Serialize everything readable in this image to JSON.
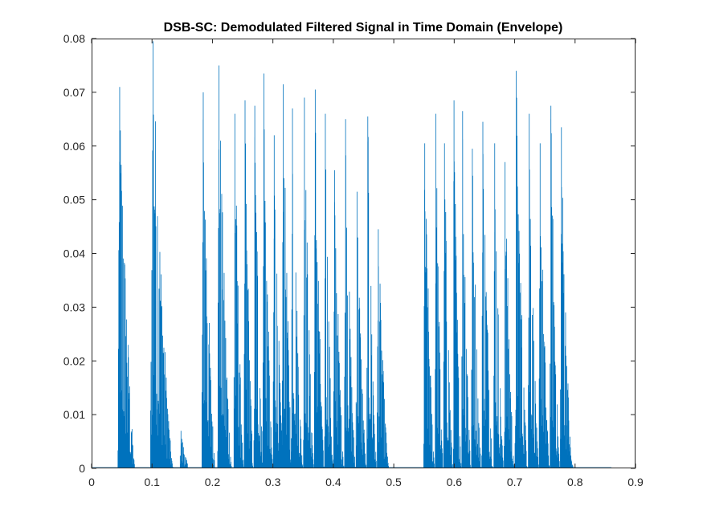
{
  "chart_data": {
    "type": "area",
    "title": "DSB-SC: Demodulated Filtered Signal in Time Domain (Envelope)",
    "xlabel": "",
    "ylabel": "",
    "xlim": [
      0,
      0.9
    ],
    "ylim": [
      0,
      0.08
    ],
    "grid": false,
    "x_ticks": [
      "0",
      "0.1",
      "0.2",
      "0.3",
      "0.4",
      "0.5",
      "0.6",
      "0.7",
      "0.8",
      "0.9"
    ],
    "y_ticks": [
      "0",
      "0.01",
      "0.02",
      "0.03",
      "0.04",
      "0.05",
      "0.06",
      "0.07",
      "0.08"
    ],
    "series_color": "#0072BD",
    "signal_end": 0.86,
    "bursts": [
      {
        "start": 0.043,
        "end": 0.072,
        "peak": 0.071
      },
      {
        "start": 0.097,
        "end": 0.135,
        "peak": 0.0795
      },
      {
        "start": 0.146,
        "end": 0.162,
        "peak": 0.007
      },
      {
        "start": 0.182,
        "end": 0.205,
        "peak": 0.07
      },
      {
        "start": 0.208,
        "end": 0.232,
        "peak": 0.075
      },
      {
        "start": 0.235,
        "end": 0.252,
        "peak": 0.066
      },
      {
        "start": 0.252,
        "end": 0.268,
        "peak": 0.0685
      },
      {
        "start": 0.268,
        "end": 0.285,
        "peak": 0.0675
      },
      {
        "start": 0.283,
        "end": 0.3,
        "peak": 0.0735
      },
      {
        "start": 0.3,
        "end": 0.318,
        "peak": 0.062
      },
      {
        "start": 0.315,
        "end": 0.333,
        "peak": 0.0715
      },
      {
        "start": 0.33,
        "end": 0.35,
        "peak": 0.067
      },
      {
        "start": 0.35,
        "end": 0.368,
        "peak": 0.069
      },
      {
        "start": 0.368,
        "end": 0.385,
        "peak": 0.0705
      },
      {
        "start": 0.385,
        "end": 0.4,
        "peak": 0.066
      },
      {
        "start": 0.4,
        "end": 0.418,
        "peak": 0.0555
      },
      {
        "start": 0.418,
        "end": 0.437,
        "peak": 0.065
      },
      {
        "start": 0.437,
        "end": 0.455,
        "peak": 0.0515
      },
      {
        "start": 0.455,
        "end": 0.472,
        "peak": 0.0655
      },
      {
        "start": 0.472,
        "end": 0.492,
        "peak": 0.0445
      },
      {
        "start": 0.549,
        "end": 0.568,
        "peak": 0.0605
      },
      {
        "start": 0.568,
        "end": 0.582,
        "peak": 0.066
      },
      {
        "start": 0.582,
        "end": 0.598,
        "peak": 0.0605
      },
      {
        "start": 0.598,
        "end": 0.612,
        "peak": 0.0685
      },
      {
        "start": 0.612,
        "end": 0.628,
        "peak": 0.0665
      },
      {
        "start": 0.628,
        "end": 0.645,
        "peak": 0.0595
      },
      {
        "start": 0.645,
        "end": 0.665,
        "peak": 0.0645
      },
      {
        "start": 0.665,
        "end": 0.682,
        "peak": 0.0605
      },
      {
        "start": 0.682,
        "end": 0.7,
        "peak": 0.057
      },
      {
        "start": 0.7,
        "end": 0.722,
        "peak": 0.074
      },
      {
        "start": 0.722,
        "end": 0.74,
        "peak": 0.066
      },
      {
        "start": 0.74,
        "end": 0.758,
        "peak": 0.0605
      },
      {
        "start": 0.758,
        "end": 0.775,
        "peak": 0.0675
      },
      {
        "start": 0.775,
        "end": 0.795,
        "peak": 0.0635
      },
      {
        "start": 0.785,
        "end": 0.798,
        "peak": 0.008
      }
    ]
  }
}
